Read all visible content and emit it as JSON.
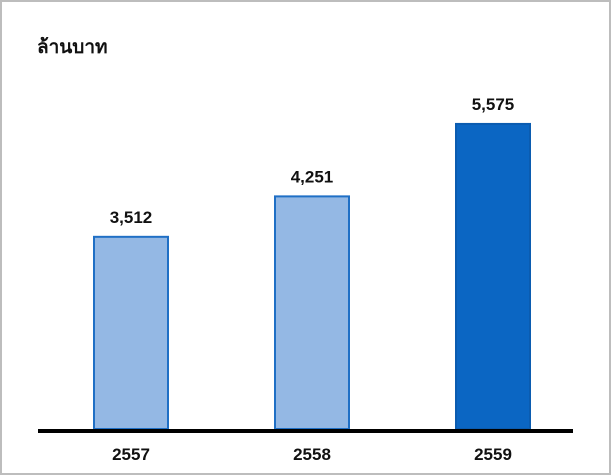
{
  "unit_label": "ล้านบาท",
  "chart_data": {
    "type": "bar",
    "categories": [
      "2557",
      "2558",
      "2559"
    ],
    "values": [
      3512,
      4251,
      5575
    ],
    "value_labels": [
      "3,512",
      "4,251",
      "5,575"
    ],
    "ylim": [
      0,
      6250
    ],
    "grid": false,
    "legend": "none",
    "colors": {
      "bar_light_fill": "#94B8E4",
      "bar_light_stroke": "#1F6FC5",
      "bar_dark_fill": "#0B66C3",
      "bar_dark_stroke": "#0B5CB0",
      "axis": "#000000",
      "text": "#111111"
    },
    "bar_styles": [
      "light",
      "light",
      "dark"
    ]
  }
}
